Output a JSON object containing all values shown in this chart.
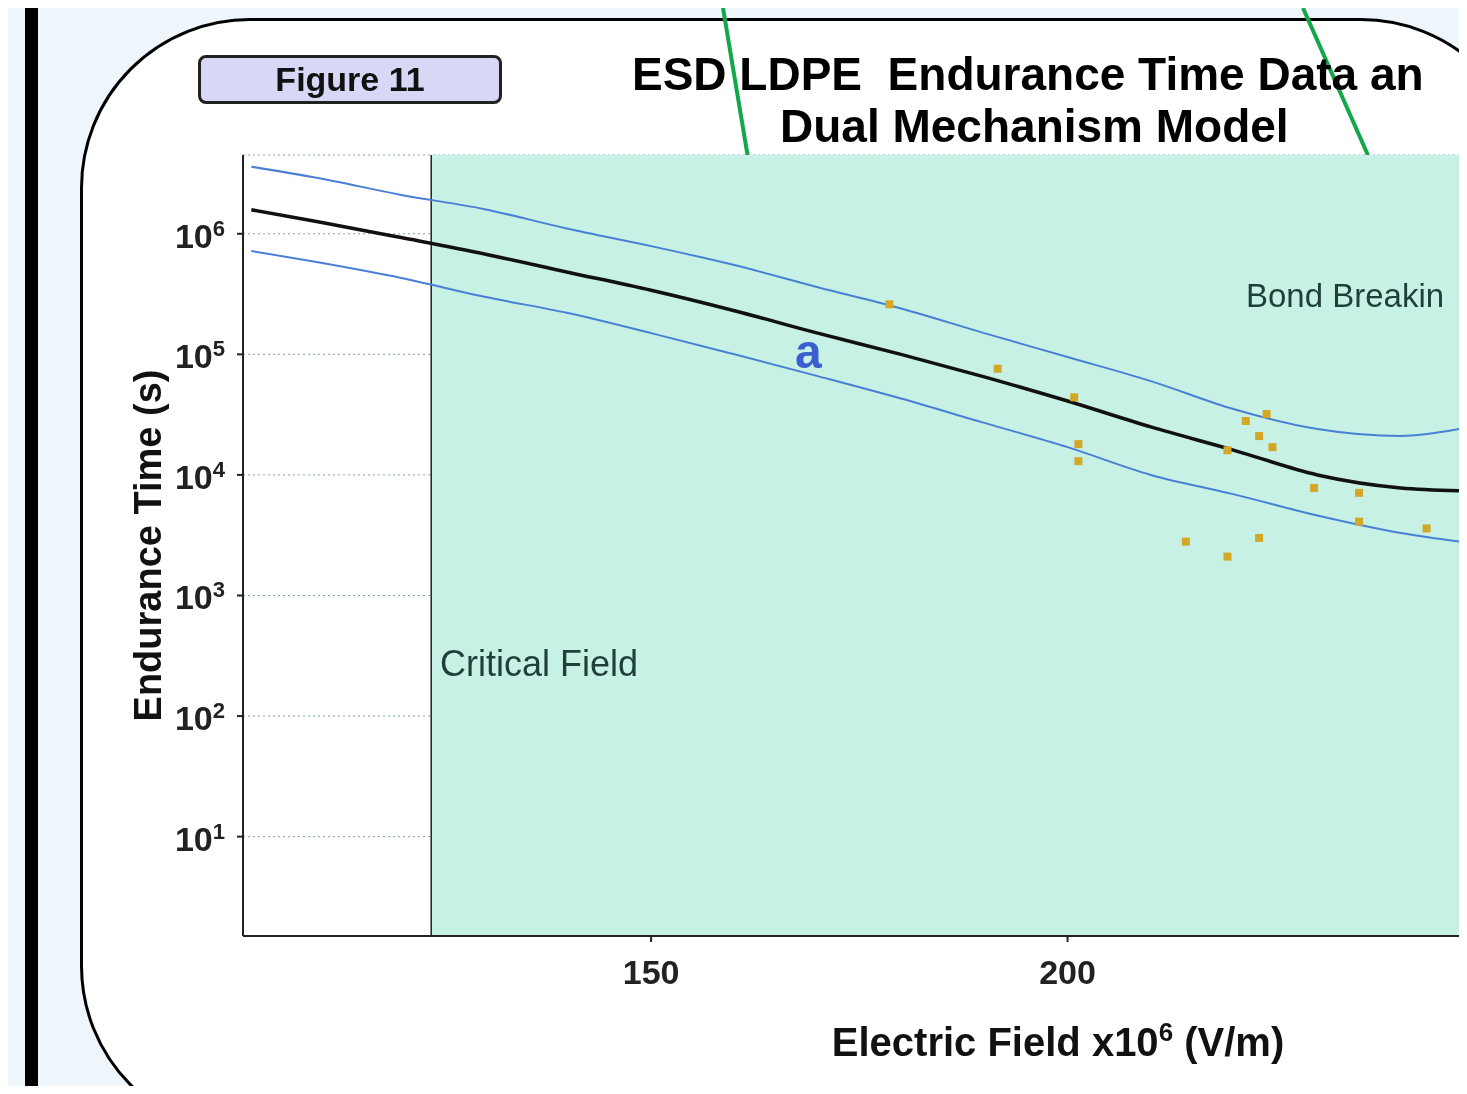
{
  "chart_data": {
    "type": "line",
    "title": "ESD LDPE  Endurance Time Data an",
    "subtitle": "Dual Mechanism Model",
    "xlabel": "Electric Field x10$^{6}$ (V/m)",
    "ylabel": "Endurance Time (s)",
    "xlim": [
      101,
      247
    ],
    "xticks": [
      150,
      200
    ],
    "ylim": [
      1.5,
      4500000
    ],
    "log": "y",
    "yticks": [
      {
        "value": 10,
        "label": "10$^{1}$"
      },
      {
        "value": 100,
        "label": "10$^{2}$"
      },
      {
        "value": 1000,
        "label": "10$^{3}$"
      },
      {
        "value": 10000,
        "label": "10$^{4}$"
      },
      {
        "value": 100000,
        "label": "10$^{5}$"
      },
      {
        "value": 1000000,
        "label": "10$^{6}$"
      }
    ],
    "grid": true,
    "line_style": "solid",
    "marker": "none",
    "bands": [
      {
        "axis": "x",
        "from": 123.6,
        "to": 247,
        "color": "#c6f1e4"
      }
    ],
    "ref_lines": [
      {
        "axis": "x",
        "value": 123.6,
        "color": "#222222"
      }
    ],
    "annotations": [
      "Figure 11",
      "Critical Field",
      "Bond Breakin",
      "a"
    ],
    "series": [
      {
        "color": "#4a7fd6",
        "x": [
          102,
          110,
          120,
          130,
          140,
          150,
          160,
          170,
          180,
          190,
          200,
          210,
          220,
          230,
          240,
          247
        ],
        "values": [
          3600000,
          2900000,
          2100000,
          1600000,
          1100000,
          790000,
          550000,
          360000,
          240000,
          150000,
          95000,
          60000,
          35000,
          24000,
          21000,
          24000
        ]
      },
      {
        "color": "#111111",
        "x": [
          102,
          110,
          120,
          130,
          140,
          150,
          160,
          170,
          180,
          190,
          200,
          210,
          220,
          230,
          240,
          247
        ],
        "values": [
          1580000,
          1260000,
          930000,
          680000,
          480000,
          340000,
          230000,
          150000,
          100000,
          65000,
          41000,
          25000,
          16000,
          10000,
          7800,
          7400
        ]
      },
      {
        "color": "#4a7fd6",
        "x": [
          102,
          110,
          120,
          130,
          140,
          150,
          160,
          170,
          180,
          190,
          200,
          210,
          220,
          230,
          240,
          247
        ],
        "values": [
          720000,
          580000,
          430000,
          300000,
          220000,
          150000,
          100000,
          66000,
          43000,
          27000,
          17000,
          10000,
          6900,
          4600,
          3300,
          2800
        ]
      },
      {
        "type": "scatter",
        "color": "#d4a827",
        "marker": "square",
        "x": [
          178.6,
          191.6,
          200.8,
          201.3,
          201.3,
          214.2,
          219.2,
          219.2,
          221.4,
          223.0,
          223.9,
          224.6,
          223.0,
          229.6,
          235.0,
          235.0,
          243.1
        ],
        "values": [
          260000,
          76000,
          44000,
          18000,
          13000,
          2800,
          16000,
          2100,
          28000,
          21000,
          32000,
          17000,
          3000,
          7800,
          7100,
          4100,
          3600
        ]
      }
    ]
  }
}
